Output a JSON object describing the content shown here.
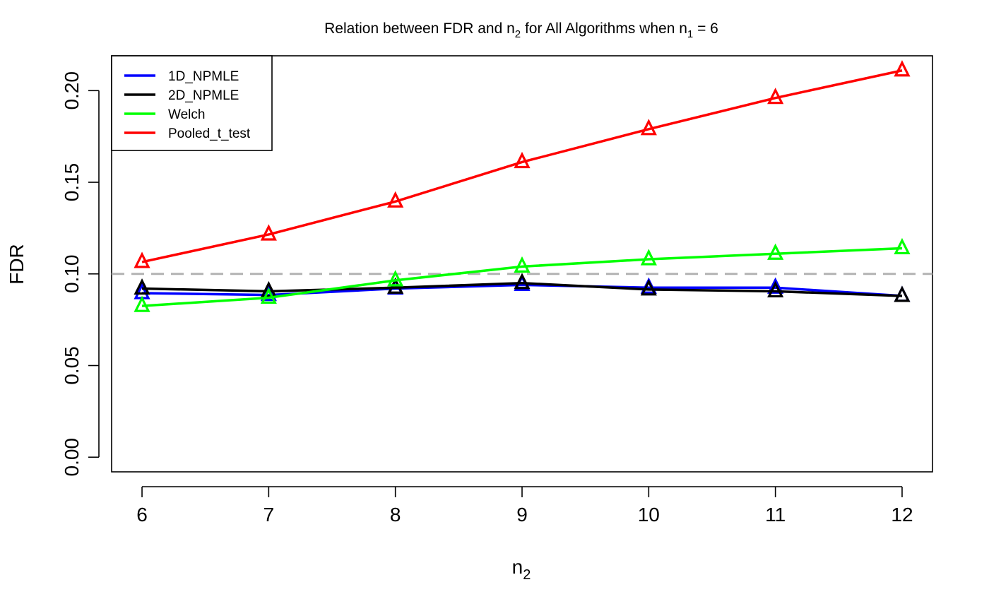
{
  "chart_data": {
    "type": "line",
    "title": "Relation between FDR and n",
    "title_sub2": "2",
    "title_mid": " for All Algorithms when n",
    "title_sub1": "1",
    "title_end": " = 6",
    "xlabel": "n",
    "xlabel_sub": "2",
    "ylabel": "FDR",
    "x": [
      6,
      7,
      8,
      9,
      10,
      11,
      12
    ],
    "x_tick_labels": [
      "6",
      "7",
      "8",
      "9",
      "10",
      "11",
      "12"
    ],
    "y_ticks": [
      0.0,
      0.05,
      0.1,
      0.15,
      0.2
    ],
    "y_tick_labels": [
      "0.00",
      "0.05",
      "0.10",
      "0.15",
      "0.20"
    ],
    "xlim": [
      5.76,
      12.24
    ],
    "ylim": [
      -0.008,
      0.219
    ],
    "marker": "open-triangle",
    "reference_line": {
      "y": 0.1,
      "style": "dashed",
      "color": "#b3b3b3"
    },
    "legend_position": "top-left",
    "series": [
      {
        "name": "1D_NPMLE",
        "color": "#0000ff",
        "values": [
          0.0895,
          0.0885,
          0.092,
          0.094,
          0.0925,
          0.0925,
          0.088
        ]
      },
      {
        "name": "2D_NPMLE",
        "color": "#000000",
        "values": [
          0.092,
          0.0905,
          0.0925,
          0.095,
          0.0915,
          0.0905,
          0.088
        ]
      },
      {
        "name": "Welch",
        "color": "#00ff00",
        "values": [
          0.0825,
          0.087,
          0.0965,
          0.104,
          0.108,
          0.111,
          0.114
        ]
      },
      {
        "name": "Pooled_t_test",
        "color": "#ff0000",
        "values": [
          0.1065,
          0.1215,
          0.1395,
          0.161,
          0.179,
          0.196,
          0.211
        ]
      }
    ]
  }
}
